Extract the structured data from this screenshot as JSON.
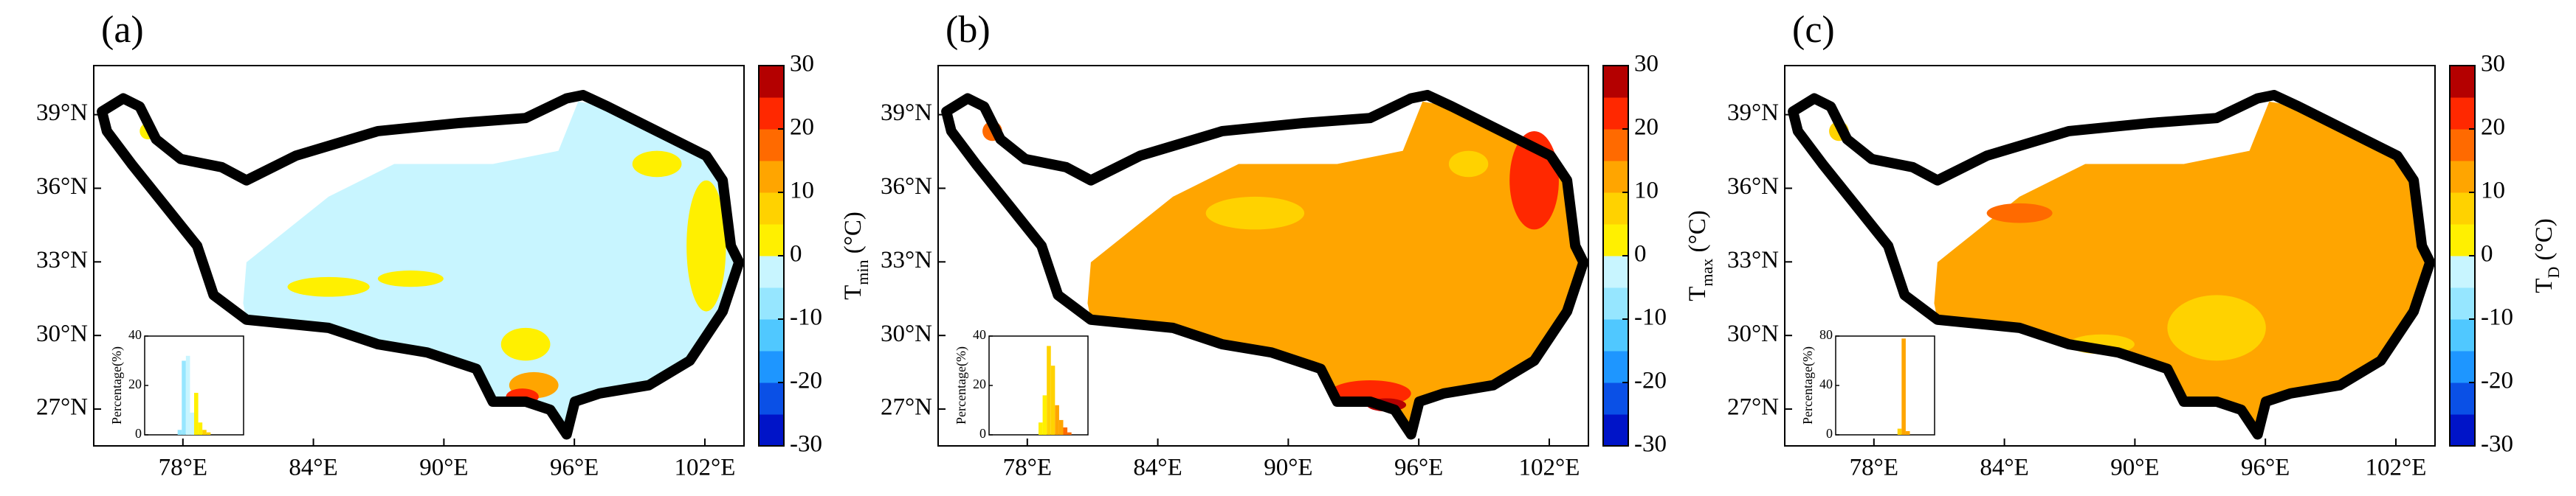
{
  "colorbar_colors": [
    "#0014c8",
    "#0a50e6",
    "#1e96ff",
    "#50c8ff",
    "#96e6ff",
    "#c8f5ff",
    "#fff000",
    "#ffd200",
    "#ffa500",
    "#ff6a00",
    "#ff2800",
    "#b40000"
  ],
  "panels": [
    {
      "label": "(a)",
      "fill": "#c8f5ff",
      "xlim": [
        73.9,
        103.8
      ],
      "ylim": [
        25.5,
        41
      ],
      "xticks": [
        {
          "value": 78,
          "label": "78°E"
        },
        {
          "value": 84,
          "label": "84°E"
        },
        {
          "value": 90,
          "label": "90°E"
        },
        {
          "value": 96,
          "label": "96°E"
        },
        {
          "value": 102,
          "label": "102°E"
        }
      ],
      "yticks": [
        {
          "value": 27,
          "label": "27°N"
        },
        {
          "value": 30,
          "label": "30°N"
        },
        {
          "value": 33,
          "label": "33°N"
        },
        {
          "value": 36,
          "label": "36°N"
        },
        {
          "value": 39,
          "label": "39°N"
        }
      ],
      "colorbar": {
        "lim": [
          -30,
          30
        ],
        "ticks": [
          -30,
          -20,
          -10,
          0,
          10,
          20,
          30
        ],
        "symbol": "T",
        "subscript": "min",
        "unit": " (°C)"
      },
      "inset": {
        "ylabel": "Percentage(%)",
        "xlim": [
          -30,
          30
        ],
        "ylim": [
          0,
          40
        ],
        "yticks": [
          0,
          20,
          40
        ],
        "bins": [
          -10,
          -7.5,
          -5,
          -2.5,
          0,
          2.5,
          5,
          7.5,
          10
        ],
        "values": [
          2,
          30,
          32,
          9,
          17,
          5,
          2,
          1
        ]
      }
    },
    {
      "label": "(b)",
      "fill": "#ffa500",
      "xlim": [
        73.9,
        103.8
      ],
      "ylim": [
        25.5,
        41
      ],
      "xticks": [
        {
          "value": 78,
          "label": "78°E"
        },
        {
          "value": 84,
          "label": "84°E"
        },
        {
          "value": 90,
          "label": "90°E"
        },
        {
          "value": 96,
          "label": "96°E"
        },
        {
          "value": 102,
          "label": "102°E"
        }
      ],
      "yticks": [
        {
          "value": 27,
          "label": "27°N"
        },
        {
          "value": 30,
          "label": "30°N"
        },
        {
          "value": 33,
          "label": "33°N"
        },
        {
          "value": 36,
          "label": "36°N"
        },
        {
          "value": 39,
          "label": "39°N"
        }
      ],
      "colorbar": {
        "lim": [
          -30,
          30
        ],
        "ticks": [
          -30,
          -20,
          -10,
          0,
          10,
          20,
          30
        ],
        "symbol": "T",
        "subscript": "max",
        "unit": " (°C)"
      },
      "inset": {
        "ylabel": "Percentage(%)",
        "xlim": [
          -30,
          30
        ],
        "ylim": [
          0,
          40
        ],
        "yticks": [
          0,
          20,
          40
        ],
        "bins": [
          0,
          2.5,
          5,
          7.5,
          10,
          12.5,
          15,
          17.5,
          20
        ],
        "values": [
          5,
          16,
          36,
          28,
          12,
          6,
          3,
          1
        ]
      }
    },
    {
      "label": "(c)",
      "fill": "#ffa500",
      "xlim": [
        73.9,
        103.8
      ],
      "ylim": [
        25.5,
        41
      ],
      "xticks": [
        {
          "value": 78,
          "label": "78°E"
        },
        {
          "value": 84,
          "label": "84°E"
        },
        {
          "value": 90,
          "label": "90°E"
        },
        {
          "value": 96,
          "label": "96°E"
        },
        {
          "value": 102,
          "label": "102°E"
        }
      ],
      "yticks": [
        {
          "value": 27,
          "label": "27°N"
        },
        {
          "value": 30,
          "label": "30°N"
        },
        {
          "value": 33,
          "label": "33°N"
        },
        {
          "value": 36,
          "label": "36°N"
        },
        {
          "value": 39,
          "label": "39°N"
        }
      ],
      "colorbar": {
        "lim": [
          -30,
          30
        ],
        "ticks": [
          -30,
          -20,
          -10,
          0,
          10,
          20,
          30
        ],
        "symbol": "T",
        "subscript": "D",
        "unit": " (°C)"
      },
      "inset": {
        "ylabel": "Percentage(%)",
        "xlim": [
          -30,
          30
        ],
        "ylim": [
          0,
          80
        ],
        "yticks": [
          0,
          40,
          80
        ],
        "bins": [
          7.5,
          10,
          12.5,
          15
        ],
        "values": [
          5,
          78,
          3
        ]
      }
    }
  ]
}
